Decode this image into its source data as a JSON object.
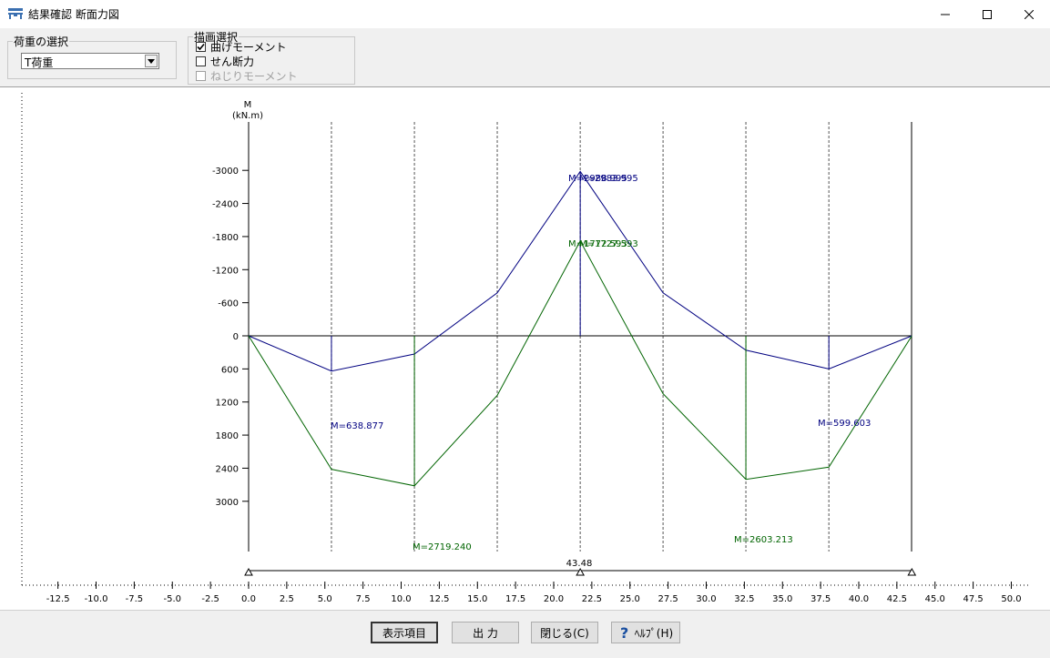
{
  "window": {
    "title": "結果確認 断面力図"
  },
  "toolbar": {
    "load_group_label": "荷重の選択",
    "load_selected": "T荷重",
    "draw_group_label": "描画選択",
    "draw_options": [
      {
        "label": "曲げモーメント",
        "checked": true,
        "enabled": true
      },
      {
        "label": "せん断力",
        "checked": false,
        "enabled": true
      },
      {
        "label": "ねじりモーメント",
        "checked": false,
        "enabled": false
      }
    ]
  },
  "chart_data": {
    "type": "line",
    "ylabel_top": "M",
    "ylabel_unit": "(kN.m)",
    "ylim": [
      3600,
      -3600
    ],
    "y_ticks": [
      -3000,
      -2400,
      -1800,
      -1200,
      -600,
      0,
      600,
      1200,
      1800,
      2400,
      3000
    ],
    "xlim": [
      -14.5,
      51.5
    ],
    "x_ticks": [
      -12.5,
      -10.0,
      -7.5,
      -5.0,
      -2.5,
      0.0,
      2.5,
      5.0,
      7.5,
      10.0,
      12.5,
      15.0,
      17.5,
      20.0,
      22.5,
      25.0,
      27.5,
      30.0,
      32.5,
      35.0,
      37.5,
      40.0,
      42.5,
      45.0,
      47.5,
      50.0
    ],
    "span_length_label": "43.48",
    "supports_x": [
      0,
      21.74,
      43.48
    ],
    "section_lines_x": [
      5.43,
      10.87,
      16.3,
      21.74,
      27.17,
      32.6,
      38.04
    ],
    "series": [
      {
        "color": "#000080",
        "x": [
          0,
          5.43,
          10.87,
          16.3,
          21.74,
          27.17,
          32.6,
          38.04,
          43.48
        ],
        "y": [
          0,
          638.877,
          330,
          -780,
          -2980,
          -780,
          260,
          599.603,
          0
        ]
      },
      {
        "color": "#006400",
        "x": [
          0,
          5.43,
          10.87,
          16.3,
          21.74,
          27.17,
          32.6,
          38.04,
          43.48
        ],
        "y": [
          0,
          2420,
          2719.24,
          1080,
          -1720,
          1050,
          2603.213,
          2380,
          0
        ]
      }
    ],
    "annotations": [
      {
        "text": "M=638.877",
        "color": "#000080"
      },
      {
        "text": "M=599.603",
        "color": "#000080"
      },
      {
        "text": "M=2719.240",
        "color": "#006400"
      },
      {
        "text": "M=2603.213",
        "color": "#006400"
      },
      {
        "text": "M=2988.995",
        "color": "#000080"
      },
      {
        "text": "M=2983.995",
        "color": "#000080"
      },
      {
        "text": "M=1772.593",
        "color": "#006400"
      },
      {
        "text": "M=1727.593",
        "color": "#006400"
      }
    ]
  },
  "buttons": {
    "display_items": "表示項目",
    "output": "出 力",
    "close": "閉じる(C)",
    "help": "ﾍﾙﾌﾟ(H)"
  }
}
